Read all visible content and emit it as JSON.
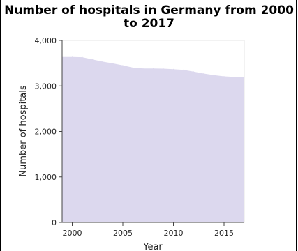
{
  "chart_data": {
    "type": "area",
    "title": "Number of hospitals in Germany from 2000 to 2017",
    "xlabel": "Year",
    "ylabel": "Number of hospitals",
    "x": [
      2000,
      2001,
      2002,
      2003,
      2004,
      2005,
      2006,
      2007,
      2008,
      2009,
      2010,
      2011,
      2012,
      2013,
      2014,
      2015,
      2016,
      2017
    ],
    "series": [
      {
        "values": [
          3636,
          3631,
          3583,
          3535,
          3496,
          3453,
          3403,
          3383,
          3383,
          3380,
          3367,
          3352,
          3315,
          3272,
          3237,
          3210,
          3200,
          3190
        ]
      }
    ],
    "xlim": [
      1999,
      2017
    ],
    "ylim": [
      0,
      4000
    ],
    "xticks": [
      2000,
      2005,
      2010,
      2015
    ],
    "xtick_labels": [
      "2000",
      "2005",
      "2010",
      "2015"
    ],
    "yticks": [
      0,
      1000,
      2000,
      3000,
      4000
    ],
    "ytick_labels": [
      "0",
      "1,000",
      "2,000",
      "3,000",
      "4,000"
    ],
    "grid": true,
    "colors": {
      "fill": "#dcd8ee",
      "axis": "#444444",
      "grid": "#e4e4e4"
    }
  }
}
